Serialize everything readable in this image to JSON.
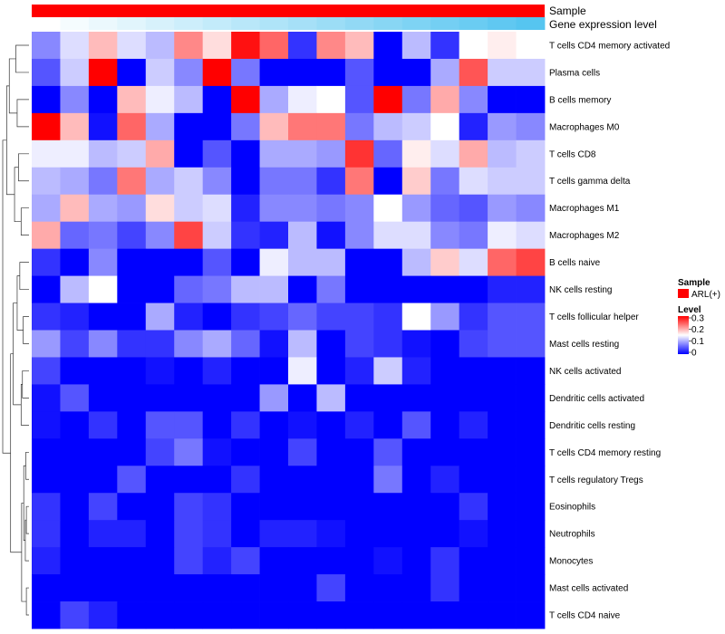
{
  "chart_data": {
    "type": "heatmap",
    "annotation_tracks": [
      {
        "name": "Sample",
        "color": "#ff0000"
      },
      {
        "name": "Gene expression level",
        "gradient": [
          "#ffffff",
          "#56c5f0"
        ]
      }
    ],
    "rows": [
      "T cells CD4 memory activated",
      "Plasma cells",
      "B cells memory",
      "Macrophages M0",
      "T cells CD8",
      "T cells gamma delta",
      "Macrophages M1",
      "Macrophages M2",
      "B cells naive",
      "NK cells resting",
      "T cells follicular helper",
      "Mast cells resting",
      "NK cells activated",
      "Dendritic cells activated",
      "Dendritic cells resting",
      "T cells CD4 memory resting",
      "T cells regulatory  Tregs",
      "Eosinophils",
      "Neutrophils",
      "Monocytes",
      "Mast cells activated",
      "T cells CD4 naive"
    ],
    "columns_count": 18,
    "values": [
      [
        0.08,
        0.13,
        0.19,
        0.13,
        0.11,
        0.22,
        0.17,
        0.29,
        0.24,
        0.03,
        0.22,
        0.19,
        0.0,
        0.11,
        0.03,
        0.15,
        0.16,
        null
      ],
      [
        0.05,
        0.12,
        0.3,
        0.0,
        0.12,
        0.08,
        0.3,
        0.07,
        0.0,
        0.0,
        0.0,
        0.05,
        0.0,
        0.0,
        0.1,
        0.25,
        0.12,
        null
      ],
      [
        0.0,
        0.08,
        0.0,
        0.19,
        0.14,
        0.11,
        0.0,
        0.3,
        0.1,
        0.14,
        0.15,
        0.05,
        0.3,
        0.07,
        0.2,
        0.08,
        0.0,
        null
      ],
      [
        0.3,
        0.19,
        0.01,
        0.24,
        0.1,
        0.0,
        0.0,
        0.07,
        0.19,
        0.23,
        0.23,
        0.07,
        0.11,
        0.12,
        0.15,
        0.02,
        0.09,
        null
      ],
      [
        0.14,
        0.14,
        0.11,
        0.12,
        0.2,
        0.0,
        0.05,
        0.0,
        0.1,
        0.1,
        0.09,
        0.27,
        0.06,
        0.16,
        0.13,
        0.2,
        0.11,
        null
      ],
      [
        0.11,
        0.1,
        0.07,
        0.23,
        0.1,
        0.12,
        0.08,
        0.0,
        0.07,
        0.07,
        0.03,
        0.23,
        0.0,
        0.18,
        0.07,
        0.13,
        0.12,
        null
      ],
      [
        0.1,
        0.19,
        0.1,
        0.09,
        0.17,
        0.12,
        0.13,
        0.02,
        0.08,
        0.08,
        0.07,
        0.08,
        0.15,
        0.09,
        0.06,
        0.05,
        0.09,
        null
      ],
      [
        0.2,
        0.06,
        0.07,
        0.04,
        0.08,
        0.26,
        0.12,
        0.03,
        0.02,
        0.11,
        0.01,
        0.08,
        0.13,
        0.13,
        0.08,
        0.07,
        0.14,
        null
      ],
      [
        0.03,
        0.0,
        0.08,
        0.0,
        0.0,
        0.0,
        0.05,
        0.0,
        0.14,
        0.11,
        0.11,
        0.0,
        0.0,
        0.11,
        0.18,
        0.13,
        0.24,
        null
      ],
      [
        0.0,
        0.11,
        0.15,
        0.0,
        0.0,
        0.06,
        0.07,
        0.11,
        0.11,
        0.0,
        0.07,
        0.0,
        0.0,
        0.0,
        0.0,
        0.0,
        0.02,
        null
      ],
      [
        0.03,
        0.02,
        0.0,
        0.0,
        0.1,
        0.02,
        0.0,
        0.03,
        0.04,
        0.06,
        0.04,
        0.04,
        0.03,
        0.15,
        0.09,
        0.03,
        0.05,
        null
      ],
      [
        0.09,
        0.04,
        0.08,
        0.03,
        0.03,
        0.08,
        0.1,
        0.06,
        0.01,
        0.11,
        0.0,
        0.04,
        0.03,
        0.01,
        0.0,
        0.04,
        0.05,
        null
      ],
      [
        0.04,
        0.0,
        0.0,
        0.0,
        0.01,
        0.0,
        0.02,
        0.0,
        0.0,
        0.14,
        0.0,
        0.02,
        0.12,
        0.02,
        0.0,
        0.0,
        0.0,
        null
      ],
      [
        0.01,
        0.05,
        0.0,
        0.0,
        0.0,
        0.0,
        0.0,
        0.0,
        0.09,
        0.0,
        0.11,
        0.0,
        0.0,
        0.0,
        0.0,
        0.0,
        0.0,
        null
      ],
      [
        0.01,
        0.0,
        0.03,
        0.0,
        0.05,
        0.05,
        0.0,
        0.03,
        0.0,
        0.01,
        0.0,
        0.02,
        0.0,
        0.05,
        0.0,
        0.02,
        0.0,
        null
      ],
      [
        0.0,
        0.0,
        0.0,
        0.0,
        0.04,
        0.07,
        0.01,
        0.0,
        0.0,
        0.04,
        0.0,
        0.0,
        0.05,
        0.0,
        0.0,
        0.0,
        0.0,
        null
      ],
      [
        0.0,
        0.0,
        0.0,
        0.05,
        0.0,
        0.0,
        0.0,
        0.03,
        0.0,
        0.0,
        0.0,
        0.0,
        0.07,
        0.0,
        0.02,
        0.0,
        0.0,
        null
      ],
      [
        0.03,
        0.0,
        0.04,
        0.0,
        0.0,
        0.04,
        0.03,
        0.0,
        0.0,
        0.0,
        0.0,
        0.0,
        0.0,
        0.0,
        0.0,
        0.03,
        0.0,
        null
      ],
      [
        0.03,
        0.0,
        0.02,
        0.02,
        0.0,
        0.04,
        0.03,
        0.0,
        0.02,
        0.02,
        0.01,
        0.0,
        0.0,
        0.0,
        0.0,
        0.01,
        0.0,
        null
      ],
      [
        0.02,
        0.0,
        0.0,
        0.0,
        0.0,
        0.04,
        0.02,
        0.04,
        0.0,
        0.0,
        0.0,
        0.0,
        0.01,
        0.0,
        0.03,
        0.0,
        0.0,
        null
      ],
      [
        0.0,
        0.0,
        0.0,
        0.0,
        0.0,
        0.0,
        0.0,
        0.0,
        0.0,
        0.0,
        0.04,
        0.0,
        0.0,
        0.0,
        0.03,
        0.0,
        0.0,
        null
      ],
      [
        0.0,
        0.04,
        0.02,
        0.0,
        0.0,
        0.0,
        0.0,
        0.0,
        0.0,
        0.0,
        0.0,
        0.0,
        0.0,
        0.0,
        0.0,
        0.0,
        0.0,
        null
      ]
    ],
    "last_column_fallback": "see rendering: lightly colored final column",
    "final_column": [
      0.15,
      0.12,
      0.0,
      0.08,
      0.12,
      0.12,
      0.08,
      0.13,
      0.26,
      0.02,
      0.05,
      0.05,
      0.0,
      0.0,
      0.0,
      0.0,
      0.0,
      0.0,
      0.0,
      0.0,
      0.0,
      0.0
    ],
    "expression_gradient_count": 18,
    "legend": {
      "sample_title": "Sample",
      "sample_label": "ARL(+)",
      "level_title": "Level",
      "level_ticks": [
        "0.3",
        "0.2",
        "0.1",
        "0"
      ],
      "level_range": [
        0,
        0.3
      ]
    },
    "colors": {
      "low": "#0000ff",
      "mid": "#ffffff",
      "high": "#ff0000",
      "sample": "#ff0000"
    },
    "dendrogram": "hierarchical clustering on rows (left)"
  }
}
